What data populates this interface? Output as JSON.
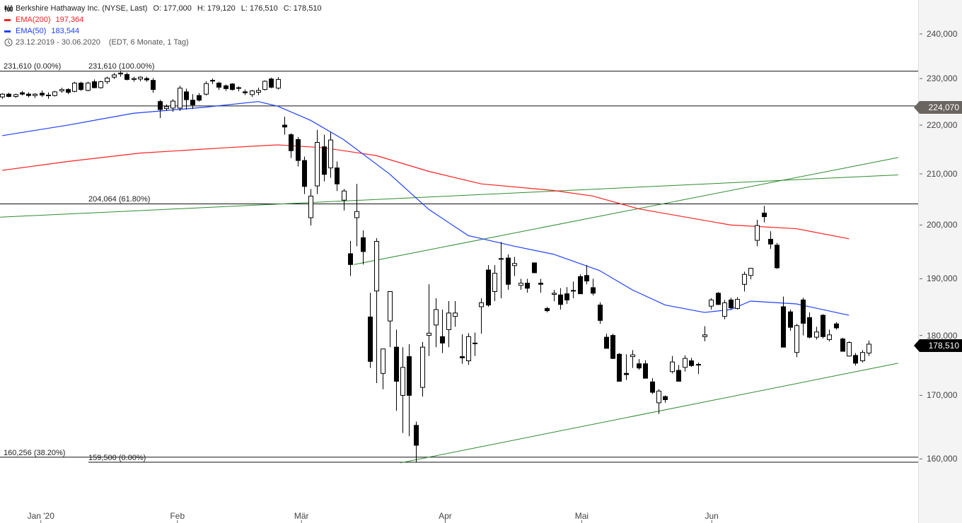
{
  "header": {
    "title": "Berkshire Hathaway Inc. (NYSE, Last)",
    "open": "O: 177,000",
    "high": "H: 179,120",
    "low": "L: 176,510",
    "close": "C: 178,510",
    "ema200_label": "EMA(200)",
    "ema200_value": "197,364",
    "ema50_label": "EMA(50)",
    "ema50_value": "183,544",
    "range": "23.12.2019 - 30.06.2020",
    "range_info": "(EDT, 6 Monate, 1 Tag)"
  },
  "colors": {
    "ema200": "#ff2020",
    "ema50": "#2040ff",
    "trend": "#2e8b2e",
    "up": "#ffffff",
    "down": "#000000",
    "tag_level": "#6b6561",
    "tag_last": "#000000"
  },
  "fib_labels": {
    "a": "231,610 (0.00%)",
    "b": "231,610 (100.00%)",
    "c": "204,064 (61.80%)",
    "d": "160,256 (38.20%)",
    "e": "159,500 (0.00%)"
  },
  "tags": {
    "level": "224,070",
    "last": "178,510"
  },
  "chart_data": {
    "type": "candlestick",
    "y_scale": "log",
    "ylim": [
      148.5,
      250
    ],
    "yticks": [
      "240,000",
      "230,000",
      "220,000",
      "210,000",
      "200,000",
      "190,000",
      "180,000",
      "170,000",
      "160,000"
    ],
    "ytick_values": [
      240,
      230,
      220,
      210,
      200,
      190,
      180,
      170,
      160
    ],
    "xticks": [
      {
        "label": "Jan '20",
        "index": 5.9
      },
      {
        "label": "Feb",
        "index": 26.7
      },
      {
        "label": "Mär",
        "index": 45.6
      },
      {
        "label": "Apr",
        "index": 67.5
      },
      {
        "label": "Mai",
        "index": 88.3
      },
      {
        "label": "Jun",
        "index": 108.1
      }
    ],
    "horizontal_levels": [
      231.61,
      224.07,
      204.064,
      160.256,
      159.5
    ],
    "trendlines": [
      {
        "from": [
          -0.3,
          201.5
        ],
        "to": [
          136.5,
          209.8
        ]
      },
      {
        "from": [
          53.6,
          192.6
        ],
        "to": [
          136.5,
          213.3
        ]
      },
      {
        "from": [
          60.7,
          159.4
        ],
        "to": [
          136.5,
          175.3
        ]
      }
    ],
    "ema50": [
      [
        0,
        217.8
      ],
      [
        10,
        220
      ],
      [
        20,
        222.5
      ],
      [
        31,
        223.8
      ],
      [
        39,
        225
      ],
      [
        42,
        224
      ],
      [
        47,
        221
      ],
      [
        52,
        217
      ],
      [
        59,
        210
      ],
      [
        65,
        203
      ],
      [
        71,
        198
      ],
      [
        78,
        196
      ],
      [
        84,
        194.5
      ],
      [
        91,
        191.5
      ],
      [
        96,
        188
      ],
      [
        101,
        185.3
      ],
      [
        107,
        184
      ],
      [
        111,
        184.5
      ],
      [
        114,
        186
      ],
      [
        121,
        185.5
      ],
      [
        129,
        183.5
      ]
    ],
    "ema200": [
      [
        0,
        210.7
      ],
      [
        10,
        212.5
      ],
      [
        21,
        214.2
      ],
      [
        34,
        215.3
      ],
      [
        42,
        215.9
      ],
      [
        49,
        215.3
      ],
      [
        57,
        213.7
      ],
      [
        65,
        210.5
      ],
      [
        73,
        208
      ],
      [
        84,
        206.7
      ],
      [
        90,
        205.6
      ],
      [
        97,
        203.1
      ],
      [
        111,
        200
      ],
      [
        121,
        199.3
      ],
      [
        129,
        197.4
      ]
    ],
    "candles": [
      [
        226.0,
        226.8,
        225.6,
        226.6
      ],
      [
        226.6,
        226.9,
        225.9,
        226.1
      ],
      [
        226.1,
        226.7,
        225.8,
        226.5
      ],
      [
        226.9,
        227.3,
        226.3,
        226.6
      ],
      [
        226.6,
        227.0,
        225.9,
        226.3
      ],
      [
        226.3,
        226.8,
        225.8,
        226.6
      ],
      [
        226.8,
        227.4,
        226.0,
        226.4
      ],
      [
        226.4,
        227.0,
        225.6,
        226.3
      ],
      [
        226.3,
        227.3,
        226.1,
        227.1
      ],
      [
        227.3,
        228.0,
        226.9,
        227.6
      ],
      [
        227.6,
        227.9,
        226.6,
        227.0
      ],
      [
        227.2,
        229.3,
        227.0,
        229.0
      ],
      [
        229.0,
        229.3,
        227.3,
        227.6
      ],
      [
        227.4,
        229.3,
        227.2,
        229.0
      ],
      [
        229.3,
        229.8,
        227.9,
        228.0
      ],
      [
        228.0,
        229.5,
        227.8,
        229.3
      ],
      [
        229.3,
        230.4,
        228.8,
        230.1
      ],
      [
        230.3,
        231.2,
        229.9,
        230.8
      ],
      [
        231.0,
        231.6,
        230.4,
        231.2
      ],
      [
        230.9,
        231.3,
        229.6,
        229.8
      ],
      [
        229.8,
        230.4,
        229.3,
        230.0
      ],
      [
        229.9,
        230.5,
        229.4,
        230.3
      ],
      [
        230.0,
        230.4,
        229.3,
        229.7
      ],
      [
        229.6,
        230.1,
        226.9,
        227.6
      ],
      [
        225.0,
        225.4,
        221.5,
        223.3
      ],
      [
        223.5,
        224.4,
        223.0,
        223.9
      ],
      [
        223.6,
        225.5,
        222.8,
        225.1
      ],
      [
        223.6,
        228.4,
        223.0,
        227.9
      ],
      [
        227.1,
        227.8,
        223.3,
        225.4
      ],
      [
        225.3,
        226.6,
        223.4,
        224.3
      ],
      [
        226.3,
        226.8,
        225.0,
        225.3
      ],
      [
        226.6,
        229.4,
        226.3,
        228.9
      ],
      [
        229.5,
        230.0,
        228.8,
        229.6
      ],
      [
        229.0,
        229.3,
        227.5,
        228.1
      ],
      [
        228.4,
        228.7,
        227.3,
        227.8
      ],
      [
        228.8,
        229.0,
        227.4,
        227.6
      ],
      [
        228.0,
        228.3,
        227.2,
        227.9
      ],
      [
        227.1,
        227.6,
        226.4,
        226.9
      ],
      [
        226.5,
        227.5,
        226.0,
        227.3
      ],
      [
        227.0,
        228.0,
        226.4,
        227.4
      ],
      [
        227.6,
        229.6,
        227.4,
        229.4
      ],
      [
        229.9,
        230.2,
        227.9,
        228.1
      ],
      [
        227.9,
        230.3,
        227.6,
        229.8
      ],
      [
        220.0,
        221.8,
        218.0,
        219.6
      ],
      [
        218.0,
        218.3,
        213.2,
        214.7
      ],
      [
        217.0,
        217.5,
        211.5,
        212.7
      ],
      [
        212.7,
        213.5,
        206.0,
        207.5
      ],
      [
        201.4,
        207.0,
        199.9,
        205.6
      ],
      [
        207.6,
        219.0,
        206.0,
        216.4
      ],
      [
        215.5,
        218.0,
        208.5,
        209.9
      ],
      [
        211.2,
        218.5,
        209.2,
        216.9
      ],
      [
        211.2,
        212.5,
        206.6,
        208.0
      ],
      [
        204.8,
        207.0,
        202.8,
        206.6
      ],
      [
        194.6,
        197.0,
        190.5,
        192.6
      ],
      [
        201.4,
        208.0,
        196.0,
        202.6
      ],
      [
        197.6,
        199.0,
        192.6,
        195.0
      ],
      [
        183.2,
        187.5,
        174.5,
        175.6
      ],
      [
        187.8,
        197.5,
        172.0,
        196.9
      ],
      [
        173.6,
        177.7,
        171.0,
        177.7
      ],
      [
        182.5,
        187.7,
        178.0,
        187.7
      ],
      [
        178.0,
        181.0,
        167.5,
        172.3
      ],
      [
        170.0,
        178.0,
        164.0,
        174.6
      ],
      [
        176.4,
        178.5,
        163.5,
        170.0
      ],
      [
        165.2,
        165.8,
        159.5,
        162.1
      ],
      [
        171.3,
        178.9,
        169.8,
        178.0
      ],
      [
        180.0,
        189.0,
        176.5,
        180.4
      ],
      [
        181.8,
        186.5,
        178.0,
        184.5
      ],
      [
        179.8,
        184.5,
        177.0,
        178.7
      ],
      [
        181.0,
        186.0,
        178.0,
        183.9
      ],
      [
        183.3,
        186.0,
        181.5,
        183.9
      ],
      [
        176.4,
        180.2,
        175.2,
        176.2
      ],
      [
        175.7,
        180.4,
        175.0,
        179.8
      ],
      [
        178.7,
        180.5,
        176.5,
        178.7
      ],
      [
        185.0,
        186.5,
        180.3,
        185.7
      ],
      [
        191.6,
        192.5,
        185.0,
        185.3
      ],
      [
        187.7,
        192.5,
        186.0,
        191.0
      ],
      [
        193.7,
        196.8,
        186.5,
        193.6
      ],
      [
        193.8,
        194.5,
        188.0,
        189.0
      ],
      [
        192.4,
        194.0,
        190.5,
        192.8
      ],
      [
        188.8,
        190.0,
        188.0,
        189.2
      ],
      [
        189.2,
        190.0,
        187.5,
        188.3
      ],
      [
        192.9,
        193.0,
        191.0,
        191.1
      ],
      [
        189.2,
        190.0,
        187.5,
        189.0
      ],
      [
        184.7,
        185.0,
        184.0,
        184.3
      ],
      [
        187.2,
        188.0,
        186.0,
        187.4
      ],
      [
        187.1,
        188.3,
        184.5,
        185.4
      ],
      [
        187.3,
        188.5,
        185.5,
        186.2
      ],
      [
        187.8,
        189.5,
        186.5,
        187.9
      ],
      [
        190.4,
        190.8,
        187.3,
        187.3
      ],
      [
        190.6,
        192.5,
        189.0,
        189.6
      ],
      [
        188.4,
        190.0,
        187.0,
        187.4
      ],
      [
        185.3,
        185.8,
        182.0,
        182.6
      ],
      [
        179.7,
        180.3,
        177.8,
        177.8
      ],
      [
        180.0,
        180.3,
        176.0,
        176.1
      ],
      [
        176.8,
        177.0,
        172.3,
        172.3
      ],
      [
        173.6,
        176.8,
        172.5,
        173.4
      ],
      [
        176.4,
        177.5,
        174.5,
        176.7
      ],
      [
        175.2,
        176.0,
        174.2,
        174.5
      ],
      [
        175.2,
        175.8,
        172.8,
        172.8
      ],
      [
        172.2,
        172.8,
        170.2,
        170.5
      ],
      [
        168.8,
        171.0,
        167.0,
        170.7
      ],
      [
        169.8,
        170.0,
        168.8,
        169.3
      ],
      [
        173.9,
        176.5,
        173.6,
        175.5
      ],
      [
        174.1,
        175.0,
        172.3,
        172.3
      ],
      [
        174.6,
        176.6,
        173.9,
        176.1
      ],
      [
        175.7,
        176.2,
        174.7,
        174.9
      ],
      [
        175.1,
        175.4,
        173.5,
        175.0
      ],
      [
        179.8,
        181.6,
        179.0,
        180.1
      ],
      [
        185.1,
        186.5,
        184.5,
        186.2
      ],
      [
        187.4,
        187.6,
        185.3,
        185.4
      ],
      [
        183.3,
        186.2,
        182.8,
        185.7
      ],
      [
        186.2,
        186.6,
        184.5,
        184.8
      ],
      [
        184.7,
        186.7,
        184.5,
        186.3
      ],
      [
        189.0,
        191.3,
        187.7,
        190.8
      ],
      [
        190.6,
        192.0,
        189.9,
        191.9
      ],
      [
        197.1,
        201.0,
        196.0,
        199.9
      ],
      [
        202.3,
        203.7,
        200.5,
        201.6
      ],
      [
        197.3,
        198.8,
        195.5,
        196.4
      ],
      [
        196.2,
        196.6,
        191.8,
        192.0
      ],
      [
        185.0,
        186.8,
        178.0,
        178.0
      ],
      [
        184.1,
        184.5,
        180.8,
        181.4
      ],
      [
        177.1,
        182.0,
        176.3,
        181.7
      ],
      [
        186.2,
        186.6,
        180.0,
        182.1
      ],
      [
        183.1,
        184.0,
        179.5,
        179.7
      ],
      [
        179.7,
        181.5,
        179.3,
        180.6
      ],
      [
        183.5,
        183.7,
        179.5,
        179.8
      ],
      [
        179.3,
        181.0,
        179.0,
        180.1
      ],
      [
        182.0,
        182.3,
        181.0,
        181.3
      ],
      [
        179.4,
        179.6,
        177.3,
        177.3
      ],
      [
        176.5,
        179.0,
        176.4,
        178.8
      ],
      [
        176.6,
        177.0,
        174.9,
        175.3
      ],
      [
        175.7,
        177.5,
        175.4,
        177.1
      ],
      [
        177.0,
        179.12,
        176.51,
        178.51
      ]
    ]
  }
}
